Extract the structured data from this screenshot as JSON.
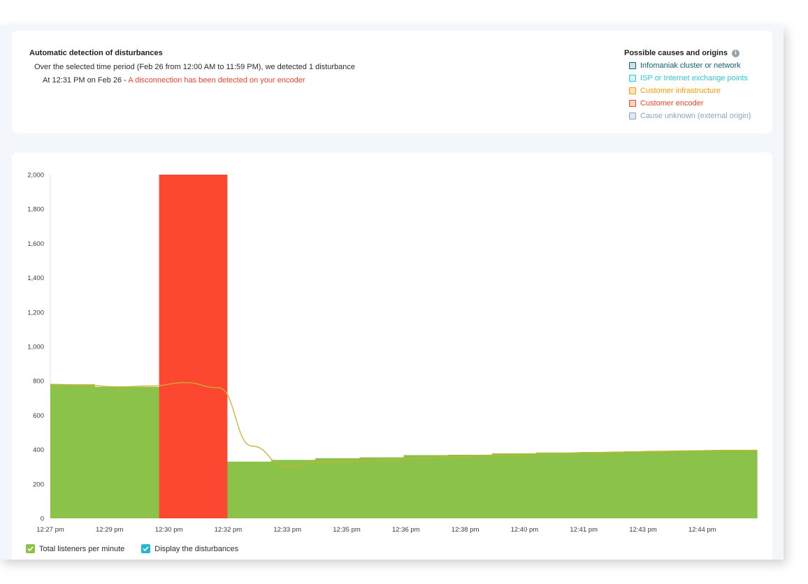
{
  "detection": {
    "title": "Automatic detection of disturbances",
    "summary": "Over the selected time period (Feb 26 from 12:00 AM to 11:59 PM), we detected 1 disturbance",
    "event_time": "At 12:31 PM on Feb 26 -",
    "event_message": "A disconnection has been detected on your encoder"
  },
  "causes": {
    "title": "Possible causes and origins",
    "info_icon": "info-icon",
    "items": [
      {
        "label": "Infomaniak cluster or network",
        "color": "#0f6272",
        "fill": "#cfe0e3"
      },
      {
        "label": "ISP or Internet exchange points",
        "color": "#2ec7d9",
        "fill": "#d6f3f6"
      },
      {
        "label": "Customer infrastructure",
        "color": "#ff9800",
        "fill": "#ffe3bf"
      },
      {
        "label": "Customer encoder",
        "color": "#f44026",
        "fill": "#fbd3cd"
      },
      {
        "label": "Cause unknown (external origin)",
        "color": "#8fa2c2",
        "fill": "#e1e7f1"
      }
    ]
  },
  "legend": {
    "listeners_label": "Total listeners per minute",
    "disturbances_label": "Display the disturbances",
    "listeners_checked": true,
    "disturbances_checked": true
  },
  "chart_data": {
    "type": "area",
    "x_tick_labels": [
      "12:27 pm",
      "12:29 pm",
      "12:30 pm",
      "12:32 pm",
      "12:33 pm",
      "12:35 pm",
      "12:36 pm",
      "12:38 pm",
      "12:40 pm",
      "12:41 pm",
      "12:43 pm",
      "12:44 pm"
    ],
    "y_ticks": [
      0,
      200,
      400,
      600,
      800,
      1000,
      1200,
      1400,
      1600,
      1800,
      2000
    ],
    "y_tick_labels": [
      "0",
      "200",
      "400",
      "600",
      "800",
      "1,000",
      "1,200",
      "1,400",
      "1,600",
      "1,800",
      "2,000"
    ],
    "ylim": [
      0,
      2000
    ],
    "series_values": [
      780,
      765,
      765,
      0,
      330,
      340,
      350,
      355,
      368,
      370,
      378,
      383,
      386,
      390,
      393,
      396,
      396
    ],
    "area_color": "#8bc34a",
    "trend_line_color": "#c9b22f",
    "trend_values": [
      780,
      775,
      765,
      770,
      790,
      760,
      420,
      300,
      325,
      330,
      340,
      350,
      355,
      368,
      370,
      378,
      383,
      386,
      390,
      393,
      396,
      396
    ],
    "disturbance": {
      "label": "Customer encoder",
      "color": "#fc4830",
      "value": 2000,
      "start_tick": 2,
      "end_tick": 3
    }
  }
}
